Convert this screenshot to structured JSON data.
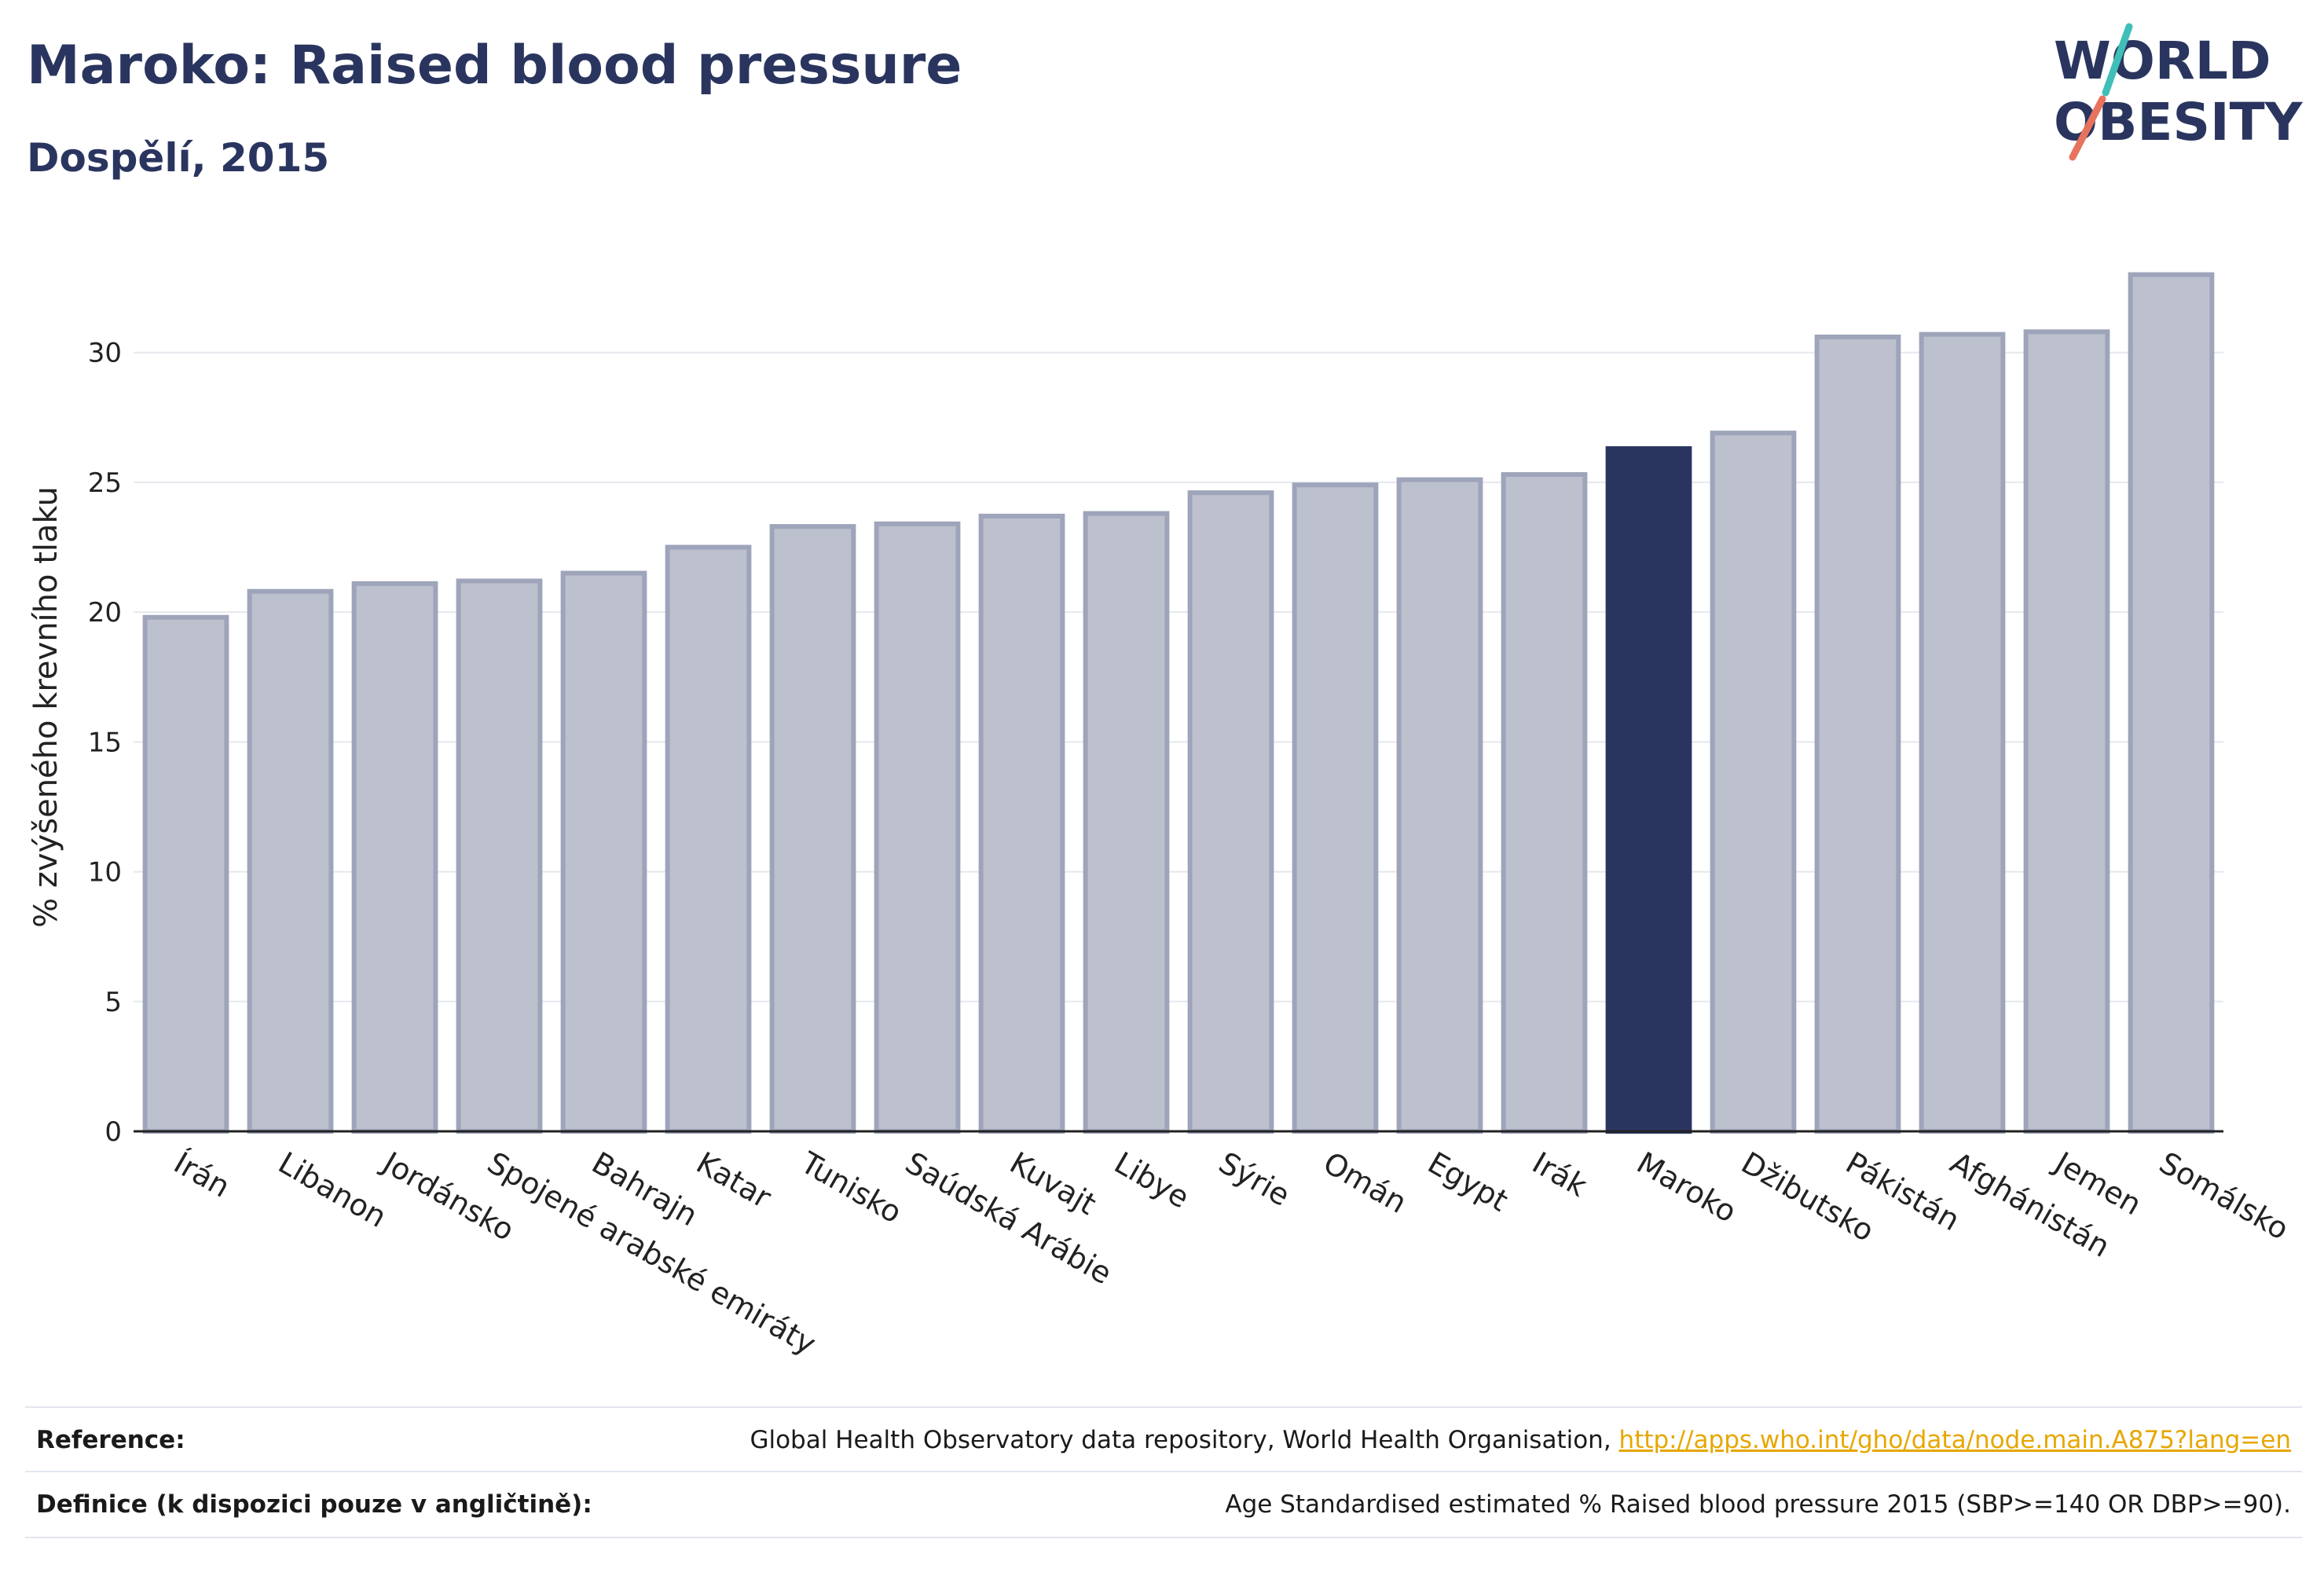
{
  "title": "Maroko: Raised blood pressure",
  "subtitle": "Dospělí, 2015",
  "logo": {
    "line1": "WORLD",
    "line2": "OBESITY"
  },
  "chart_data": {
    "type": "bar",
    "categories": [
      "Írán",
      "Libanon",
      "Jordánsko",
      "Spojené arabské emiráty",
      "Bahrajn",
      "Katar",
      "Tunisko",
      "Saúdská Arábie",
      "Kuvajt",
      "Libye",
      "Sýrie",
      "Omán",
      "Egypt",
      "Irák",
      "Maroko",
      "Džibutsko",
      "Pákistán",
      "Afghánistán",
      "Jemen",
      "Somálsko"
    ],
    "values": [
      19.8,
      20.8,
      21.1,
      21.2,
      21.5,
      22.5,
      23.3,
      23.4,
      23.7,
      23.8,
      24.6,
      24.9,
      25.1,
      25.3,
      26.3,
      26.9,
      30.6,
      30.7,
      30.8,
      33.0
    ],
    "highlight": "Maroko",
    "ylabel": "% zvýšeného krevního tlaku",
    "xlabel": "",
    "yticks": [
      0,
      5,
      10,
      15,
      20,
      25,
      30
    ],
    "ylim": [
      0,
      34.5
    ],
    "grid": true,
    "colors": {
      "bar": "#bdc1ce",
      "bar_edge": "#9ea4ba",
      "highlight": "#2a355f",
      "grid": "#e6e8ee"
    }
  },
  "footer": {
    "reference_label": "Reference:",
    "reference_text": "Global Health Observatory data repository, World Health Organisation,",
    "reference_link": "http://apps.who.int/gho/data/node.main.A875?lang=en",
    "definition_label": "Definice (k dispozici pouze v angličtině):",
    "definition_text": "Age Standardised estimated % Raised blood pressure 2015 (SBP>=140 OR DBP>=90)."
  }
}
